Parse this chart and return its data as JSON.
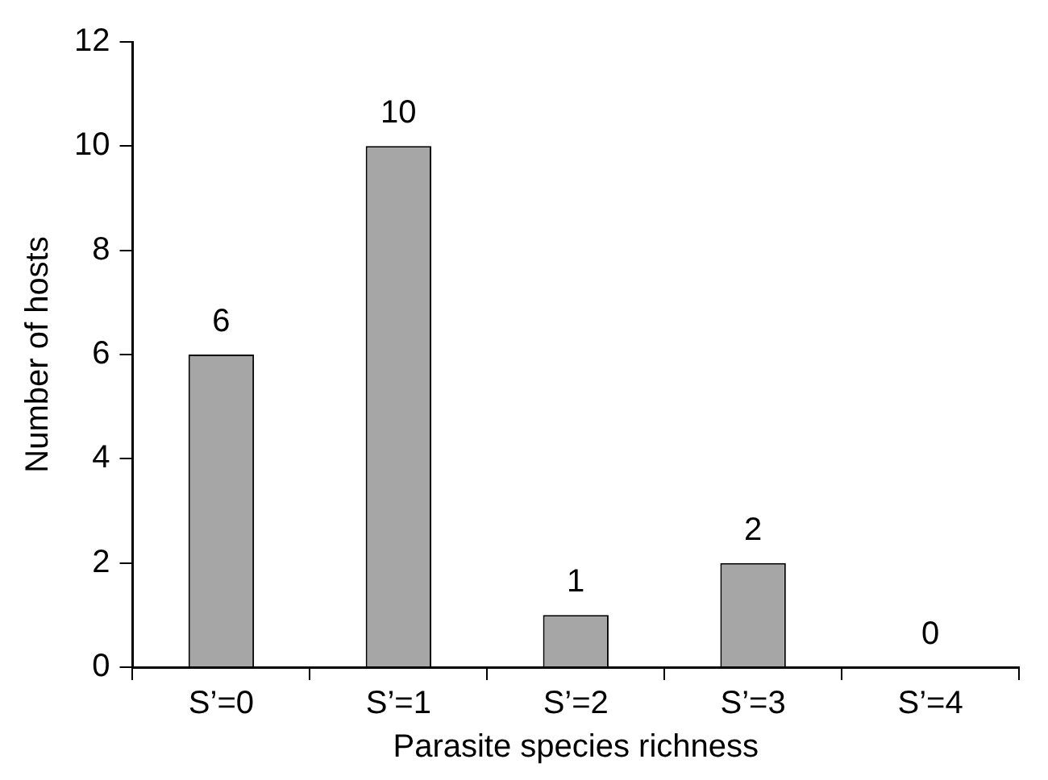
{
  "chart_data": {
    "type": "bar",
    "xlabel": "Parasite species richness",
    "ylabel": "Number of hosts",
    "categories": [
      "S’=0",
      "S’=1",
      "S’=2",
      "S’=3",
      "S’=4"
    ],
    "values": [
      6,
      10,
      1,
      2,
      0
    ],
    "color": "#a6a6a6",
    "ylim": [
      0,
      12
    ],
    "yticks": [
      0,
      2,
      4,
      6,
      8,
      10,
      12
    ],
    "grid": false,
    "legend": false,
    "data_labels": true
  }
}
